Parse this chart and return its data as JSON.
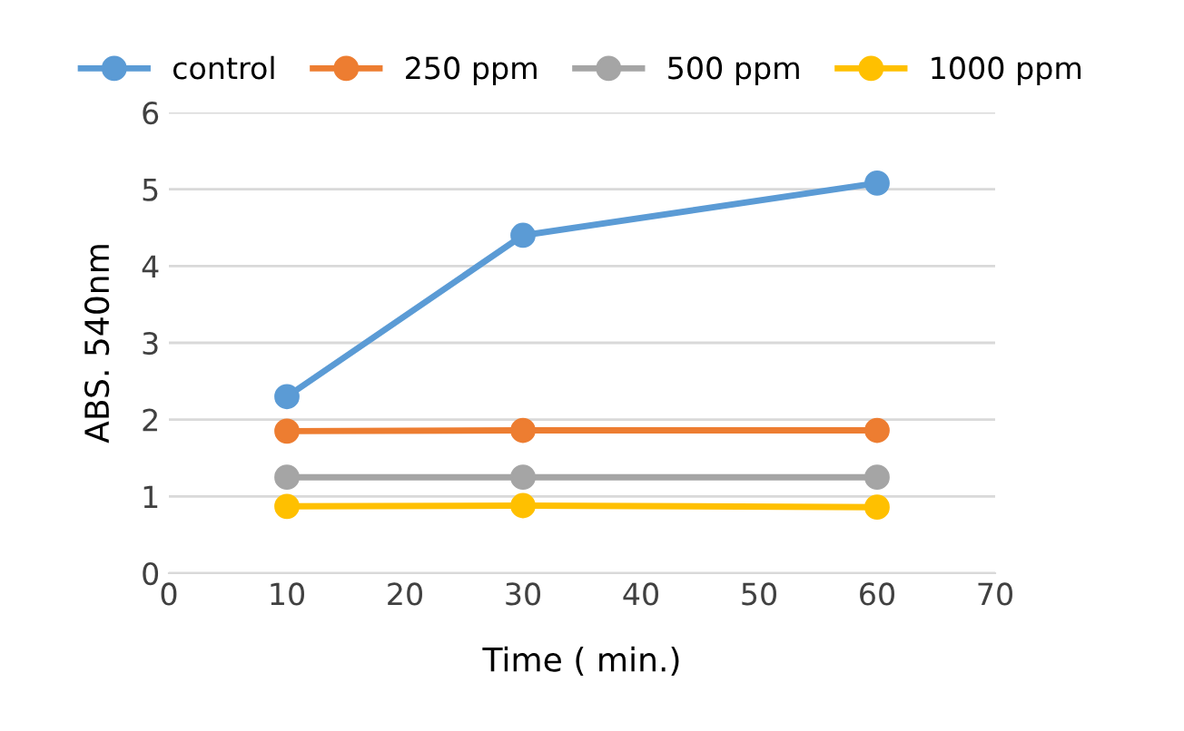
{
  "chart_data": {
    "type": "line",
    "xlabel": "Time ( min.)",
    "ylabel": "ABS. 540nm",
    "x": [
      10,
      30,
      60
    ],
    "series": [
      {
        "name": "control",
        "color": "#5b9bd5",
        "values": [
          2.3,
          4.4,
          5.08
        ]
      },
      {
        "name": "250 ppm",
        "color": "#ed7d31",
        "values": [
          1.85,
          1.86,
          1.86
        ]
      },
      {
        "name": "500 ppm",
        "color": "#a5a5a5",
        "values": [
          1.25,
          1.25,
          1.25
        ]
      },
      {
        "name": "1000 ppm",
        "color": "#ffc000",
        "values": [
          0.87,
          0.88,
          0.86
        ]
      }
    ],
    "xlim": [
      0,
      70
    ],
    "xticks": [
      0,
      10,
      20,
      30,
      40,
      50,
      60,
      70
    ],
    "ylim": [
      0,
      6
    ],
    "yticks": [
      0,
      1,
      2,
      3,
      4,
      5,
      6
    ],
    "grid": "y",
    "legend": "top",
    "marker": "circle",
    "line_style": "solid"
  }
}
